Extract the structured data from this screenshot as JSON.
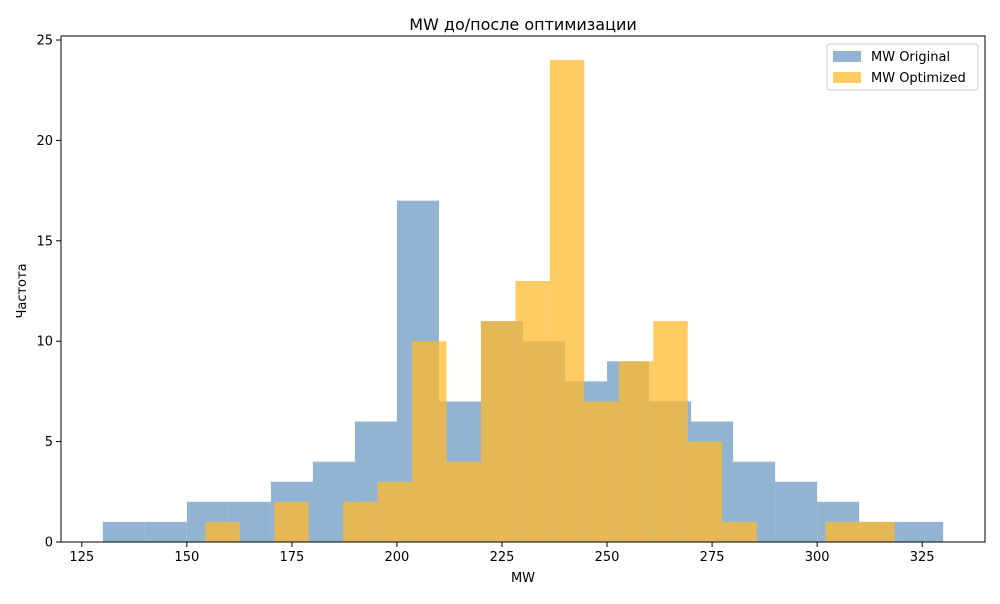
{
  "chart_data": {
    "type": "bar",
    "title": "MW до/после оптимизации",
    "xlabel": "MW",
    "ylabel": "Частота",
    "xlim": [
      120.05,
      339.95
    ],
    "ylim": [
      0,
      25.2
    ],
    "xticks": [
      125,
      150,
      175,
      200,
      225,
      250,
      275,
      300,
      325
    ],
    "yticks": [
      0,
      5,
      10,
      15,
      20,
      25
    ],
    "grid": false,
    "legend": "top-right",
    "series": [
      {
        "name": "MW Original",
        "color": "#6f9ac3",
        "opacity": 0.75,
        "bins": [
          {
            "x0": 130,
            "x1": 140,
            "value": 1
          },
          {
            "x0": 140,
            "x1": 150,
            "value": 1
          },
          {
            "x0": 150,
            "x1": 160,
            "value": 2
          },
          {
            "x0": 160,
            "x1": 170,
            "value": 2
          },
          {
            "x0": 170,
            "x1": 180,
            "value": 3
          },
          {
            "x0": 180,
            "x1": 190,
            "value": 4
          },
          {
            "x0": 190,
            "x1": 200,
            "value": 6
          },
          {
            "x0": 200,
            "x1": 210,
            "value": 17
          },
          {
            "x0": 210,
            "x1": 220,
            "value": 7
          },
          {
            "x0": 220,
            "x1": 230,
            "value": 11
          },
          {
            "x0": 230,
            "x1": 240,
            "value": 10
          },
          {
            "x0": 240,
            "x1": 250,
            "value": 8
          },
          {
            "x0": 250,
            "x1": 260,
            "value": 9
          },
          {
            "x0": 260,
            "x1": 270,
            "value": 7
          },
          {
            "x0": 270,
            "x1": 280,
            "value": 6
          },
          {
            "x0": 280,
            "x1": 290,
            "value": 4
          },
          {
            "x0": 290,
            "x1": 300,
            "value": 3
          },
          {
            "x0": 300,
            "x1": 310,
            "value": 2
          },
          {
            "x0": 310,
            "x1": 320,
            "value": 1
          },
          {
            "x0": 320,
            "x1": 330,
            "value": 1
          }
        ]
      },
      {
        "name": "MW Optimized",
        "color": "#ffb92e",
        "opacity": 0.75,
        "bins": [
          {
            "x0": 154.4,
            "x1": 162.6,
            "value": 1
          },
          {
            "x0": 162.6,
            "x1": 170.8,
            "value": 0
          },
          {
            "x0": 170.8,
            "x1": 179.0,
            "value": 2
          },
          {
            "x0": 179.0,
            "x1": 187.2,
            "value": 0
          },
          {
            "x0": 187.2,
            "x1": 195.4,
            "value": 2
          },
          {
            "x0": 195.4,
            "x1": 203.6,
            "value": 3
          },
          {
            "x0": 203.6,
            "x1": 211.8,
            "value": 10
          },
          {
            "x0": 211.8,
            "x1": 220.0,
            "value": 4
          },
          {
            "x0": 220.0,
            "x1": 228.2,
            "value": 11
          },
          {
            "x0": 228.2,
            "x1": 236.4,
            "value": 13
          },
          {
            "x0": 236.4,
            "x1": 244.6,
            "value": 24
          },
          {
            "x0": 244.6,
            "x1": 252.8,
            "value": 7
          },
          {
            "x0": 252.8,
            "x1": 261.0,
            "value": 9
          },
          {
            "x0": 261.0,
            "x1": 269.2,
            "value": 11
          },
          {
            "x0": 269.2,
            "x1": 277.4,
            "value": 5
          },
          {
            "x0": 277.4,
            "x1": 285.6,
            "value": 1
          },
          {
            "x0": 285.6,
            "x1": 293.8,
            "value": 0
          },
          {
            "x0": 293.8,
            "x1": 302.0,
            "value": 0
          },
          {
            "x0": 302.0,
            "x1": 310.2,
            "value": 1
          },
          {
            "x0": 310.2,
            "x1": 318.4,
            "value": 1
          }
        ]
      }
    ]
  }
}
